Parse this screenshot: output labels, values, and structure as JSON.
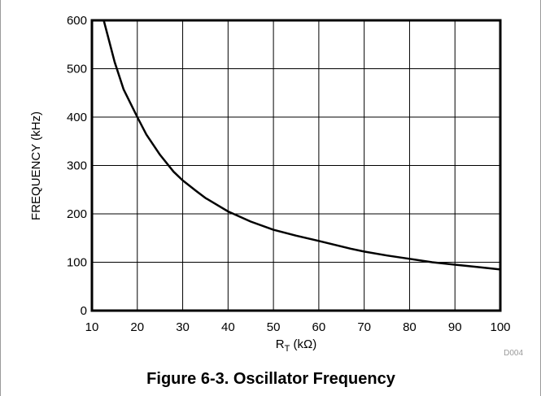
{
  "chart_data": {
    "type": "line",
    "title": "Figure 6-3. Oscillator Frequency",
    "xlabel": "R",
    "xlabel_sub": "T",
    "xlabel_unit": " (kΩ)",
    "ylabel": "FREQUENCY (kHz)",
    "figure_id": "D004",
    "xlim": [
      10,
      100
    ],
    "ylim": [
      0,
      600
    ],
    "xticks": [
      10,
      20,
      30,
      40,
      50,
      60,
      70,
      80,
      90,
      100
    ],
    "yticks": [
      0,
      100,
      200,
      300,
      400,
      500,
      600
    ],
    "grid": true,
    "series": [
      {
        "x": [
          12.6,
          13.5,
          15,
          17,
          20,
          22,
          25,
          28,
          30,
          33,
          35,
          40,
          45,
          50,
          55,
          60,
          67,
          70,
          75,
          80,
          85,
          90,
          95,
          100
        ],
        "values": [
          600,
          568,
          514,
          457,
          400,
          364,
          322,
          287,
          269,
          247,
          233,
          205,
          184,
          167,
          155,
          144,
          128,
          122,
          114,
          107,
          100,
          95,
          90,
          85
        ]
      }
    ],
    "color": "#000000"
  }
}
